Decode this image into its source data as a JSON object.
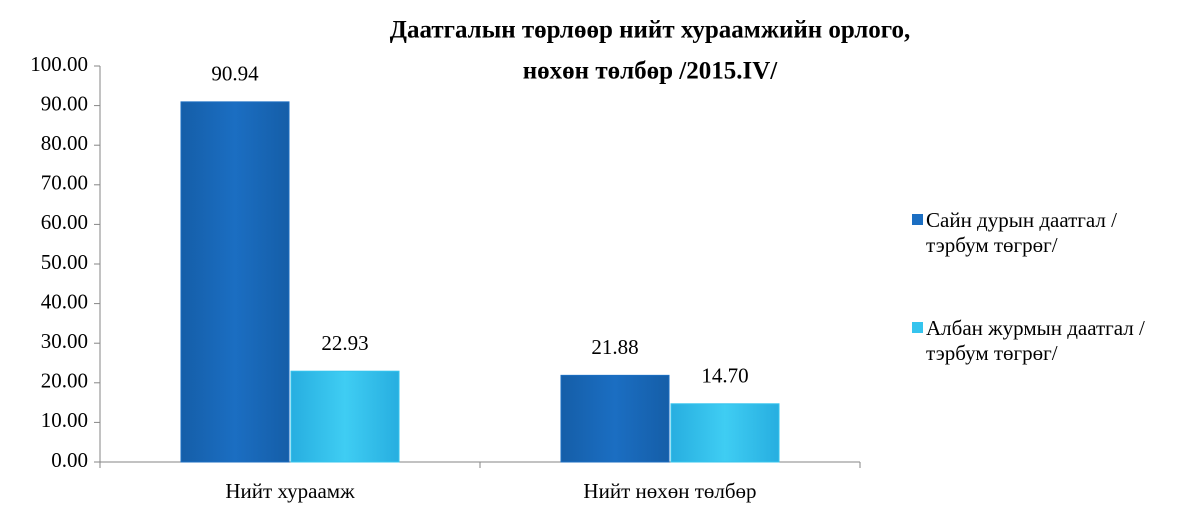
{
  "chart_data": {
    "type": "bar",
    "title": [
      "Даатгалын төрлөөр нийт хураамжийн орлого,",
      "нөхөн төлбөр /2015.IV/"
    ],
    "categories": [
      "Нийт хураамж",
      "Нийт нөхөн төлбөр"
    ],
    "series": [
      {
        "name": "Сайн дурын даатгал /тэрбум төгрөг/",
        "color": "#1b6ec2",
        "values": [
          90.94,
          21.88
        ],
        "value_labels": [
          "90.94",
          "21.88"
        ]
      },
      {
        "name": "Албан журмын даатгал /тэрбум төгрөг/",
        "color": "#35c4ee",
        "values": [
          22.93,
          14.7
        ],
        "value_labels": [
          "22.93",
          "14.70"
        ]
      }
    ],
    "ylim": [
      0,
      100
    ],
    "yticks": [
      {
        "value": 0,
        "label": "0.00"
      },
      {
        "value": 10,
        "label": "10.00"
      },
      {
        "value": 20,
        "label": "20.00"
      },
      {
        "value": 30,
        "label": "30.00"
      },
      {
        "value": 40,
        "label": "40.00"
      },
      {
        "value": 50,
        "label": "50.00"
      },
      {
        "value": 60,
        "label": "60.00"
      },
      {
        "value": 70,
        "label": "70.00"
      },
      {
        "value": 80,
        "label": "80.00"
      },
      {
        "value": 90,
        "label": "90.00"
      },
      {
        "value": 100,
        "label": "100.00"
      }
    ],
    "legend": "right"
  }
}
